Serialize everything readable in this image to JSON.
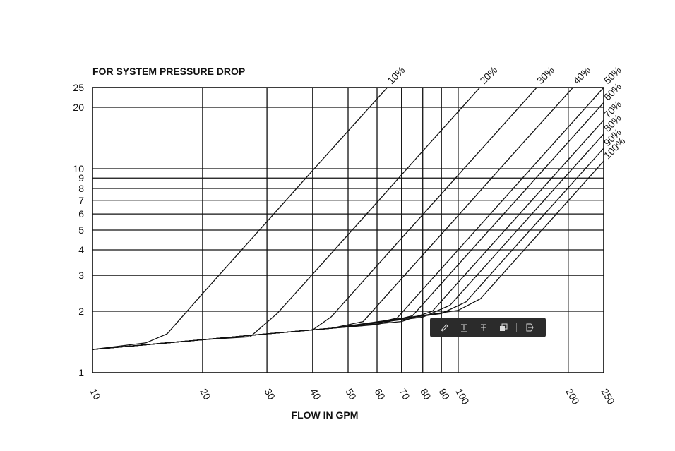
{
  "chart_data": {
    "type": "line",
    "title": "FOR SYSTEM PRESSURE DROP",
    "xlabel": "FLOW IN GPM",
    "xscale": "log",
    "yscale": "log",
    "grid": true,
    "color": "#111111",
    "xlim": [
      10,
      250
    ],
    "ylim": [
      1,
      25
    ],
    "xticks": [
      10,
      20,
      30,
      40,
      50,
      60,
      70,
      80,
      90,
      100,
      200,
      250
    ],
    "yticks": [
      1,
      2,
      3,
      4,
      5,
      6,
      7,
      8,
      9,
      10,
      20,
      25
    ],
    "series": [
      {
        "name": "10%",
        "x": [
          10,
          14,
          16,
          20,
          30,
          40,
          50,
          64
        ],
        "y": [
          1.3,
          1.4,
          1.55,
          2.44,
          5.5,
          9.8,
          15.3,
          25
        ]
      },
      {
        "name": "20%",
        "x": [
          10,
          20,
          27,
          32,
          40,
          60,
          80,
          114.6
        ],
        "y": [
          1.3,
          1.45,
          1.5,
          1.95,
          3.04,
          6.84,
          12.2,
          25
        ]
      },
      {
        "name": "30%",
        "x": [
          10,
          20,
          30,
          40,
          45,
          60,
          100,
          164
        ],
        "y": [
          1.3,
          1.45,
          1.55,
          1.62,
          1.88,
          3.35,
          9.3,
          25
        ]
      },
      {
        "name": "40%",
        "x": [
          10,
          20,
          30,
          45,
          55,
          70,
          100,
          150,
          206
        ],
        "y": [
          1.3,
          1.45,
          1.55,
          1.65,
          1.78,
          2.89,
          5.89,
          13.3,
          25
        ]
      },
      {
        "name": "50%",
        "x": [
          10,
          20,
          30,
          45,
          55,
          68,
          80,
          100,
          150,
          250
        ],
        "y": [
          1.3,
          1.45,
          1.55,
          1.65,
          1.7,
          1.85,
          2.56,
          4,
          9,
          25
        ]
      },
      {
        "name": "60%",
        "x": [
          10,
          20,
          30,
          45,
          60,
          75,
          100,
          150,
          250
        ],
        "y": [
          1.3,
          1.45,
          1.55,
          1.65,
          1.72,
          1.9,
          3.38,
          7.6,
          21.1
        ]
      },
      {
        "name": "70%",
        "x": [
          10,
          20,
          30,
          45,
          70,
          85,
          100,
          150,
          250
        ],
        "y": [
          1.3,
          1.45,
          1.55,
          1.65,
          1.78,
          2.0,
          2.77,
          6.23,
          17.3
        ]
      },
      {
        "name": "80%",
        "x": [
          10,
          20,
          30,
          45,
          80,
          95,
          120,
          180,
          250
        ],
        "y": [
          1.3,
          1.45,
          1.55,
          1.65,
          1.87,
          2.14,
          3.41,
          7.68,
          14.8
        ]
      },
      {
        "name": "90%",
        "x": [
          10,
          20,
          30,
          45,
          90,
          105,
          130,
          180,
          250
        ],
        "y": [
          1.3,
          1.45,
          1.55,
          1.65,
          1.95,
          2.22,
          3.41,
          6.54,
          12.6
        ]
      },
      {
        "name": "100%",
        "x": [
          10,
          20,
          30,
          45,
          100,
          115,
          140,
          180,
          250
        ],
        "y": [
          1.3,
          1.45,
          1.55,
          1.65,
          2.02,
          2.3,
          3.41,
          5.64,
          10.9
        ]
      }
    ]
  }
}
